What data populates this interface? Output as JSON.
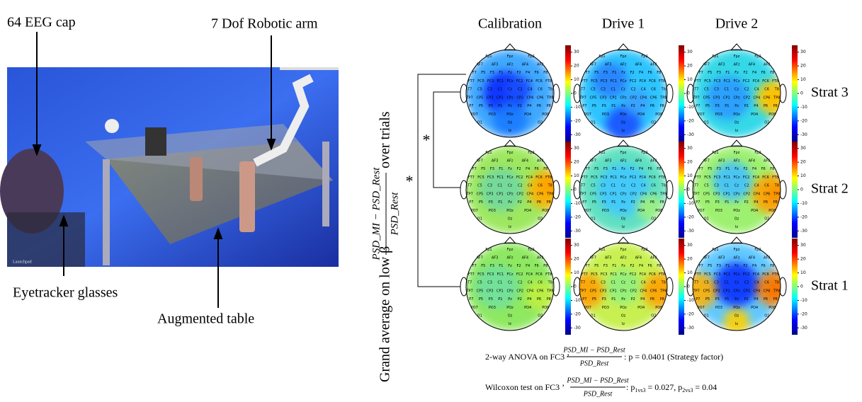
{
  "photo": {
    "labels": {
      "eeg": "64 EEG cap",
      "arm": "7 Dof Robotic arm",
      "glasses": "Eyetracker glasses",
      "table": "Augmented table"
    },
    "watermark": "Launchpad"
  },
  "y_label": {
    "before": "Grand average on low β",
    "numerator": "PSD_MI − PSD_Rest",
    "denominator": "PSD_Rest",
    "after": "over trials"
  },
  "columns": [
    "Calibration",
    "Drive 1",
    "Drive 2"
  ],
  "rows": [
    "Strat 3",
    "Strat 2",
    "Strat 1"
  ],
  "colorbar": {
    "ylim": [
      -35,
      35
    ],
    "ticks": [
      30,
      20,
      10,
      0,
      -10,
      -20,
      -30
    ]
  },
  "electrodes": [
    [
      "Fp1",
      "Fpz",
      "Fp2"
    ],
    [
      "AF7",
      "AF3",
      "AFz",
      "AF4",
      "AF8"
    ],
    [
      "F7",
      "F5",
      "F3",
      "F1",
      "Fz",
      "F2",
      "F4",
      "F6",
      "F8"
    ],
    [
      "FT7",
      "FC5",
      "FC3",
      "FC1",
      "FCz",
      "FC2",
      "FC4",
      "FC6",
      "FT8"
    ],
    [
      "T7",
      "C5",
      "C3",
      "C1",
      "Cz",
      "C2",
      "C4",
      "C6",
      "T8"
    ],
    [
      "TP7",
      "CP5",
      "CP3",
      "CP1",
      "CPz",
      "CP2",
      "CP4",
      "CP6",
      "TP8"
    ],
    [
      "P7",
      "P5",
      "P3",
      "P1",
      "Pz",
      "P2",
      "P4",
      "P6",
      "P8"
    ],
    [
      "PO7",
      "PO3",
      "POz",
      "PO4",
      "PO8"
    ],
    [
      "O1",
      "Oz",
      "O2"
    ],
    [
      "Iz"
    ]
  ],
  "significance": {
    "outer": "*",
    "inner": "*"
  },
  "stats": {
    "anova": {
      "prefix": "2-way ANOVA on FC3 ’",
      "numerator": "PSD_MI − PSD_Rest",
      "denominator": "PSD_Rest",
      "suffix": ": p = 0.0401 (Strategy factor)"
    },
    "wilcoxon": {
      "prefix": "Wilcoxon test on FC3 ’",
      "numerator": "PSD_MI − PSD_Rest",
      "denominator": "PSD_Rest",
      "p1": ": p",
      "sub1": "1vs3",
      "mid": " = 0.027, p",
      "sub2": "2vs3",
      "end": " = 0.04"
    }
  }
}
